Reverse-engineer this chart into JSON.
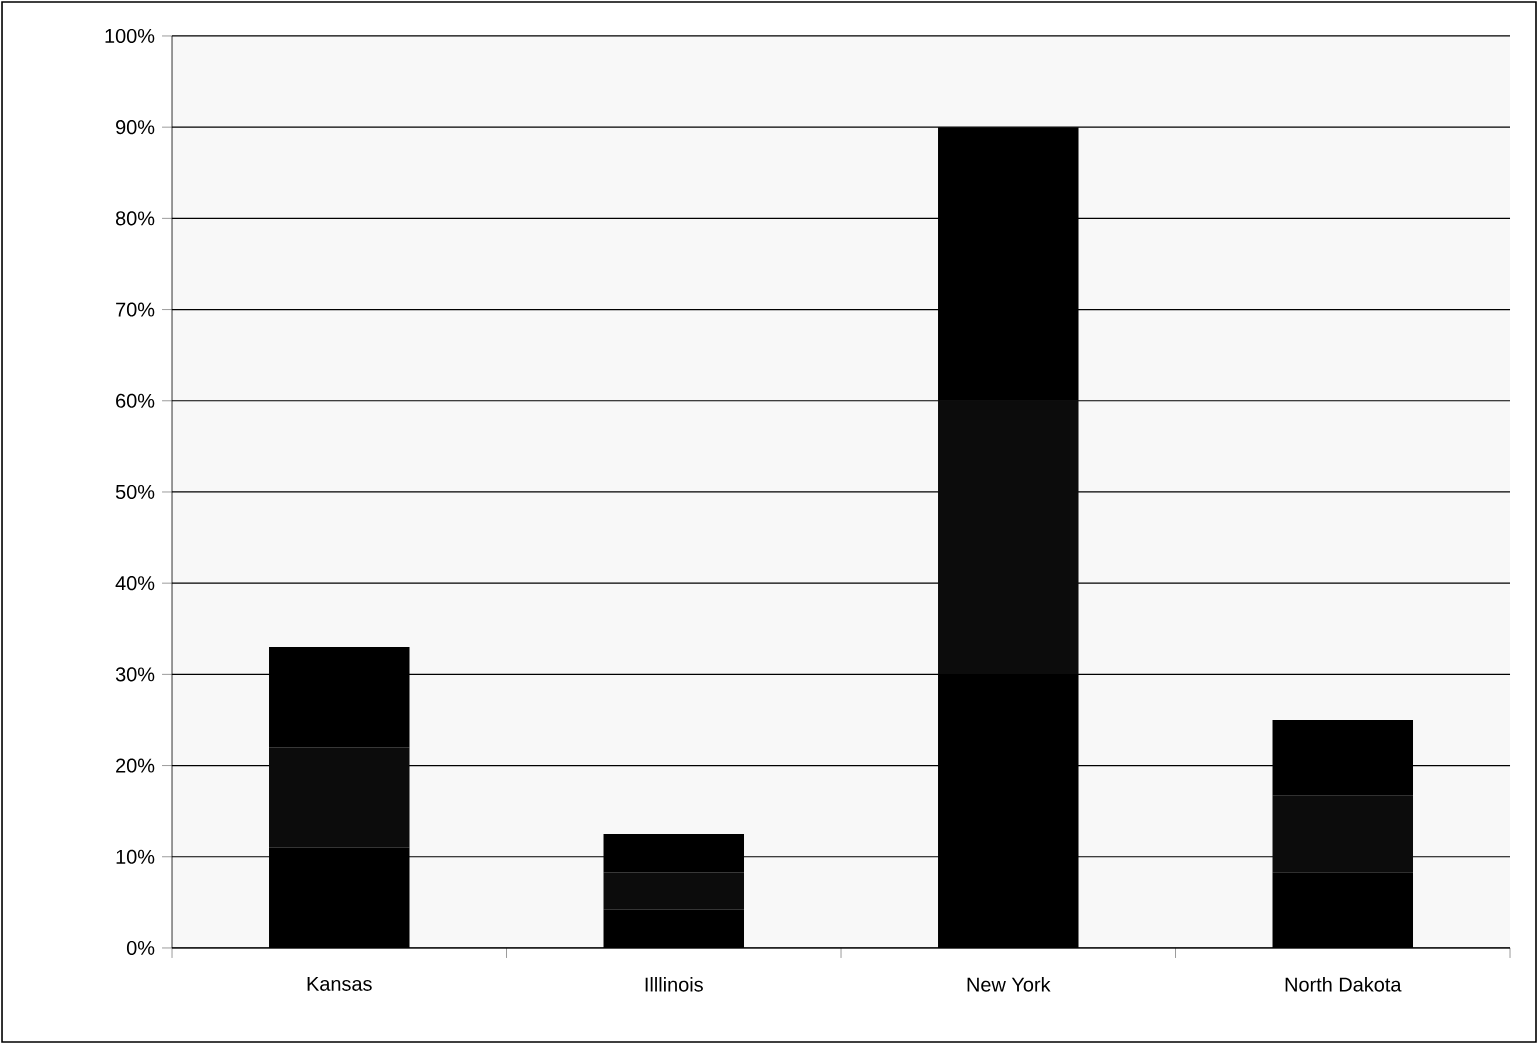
{
  "chart_data": {
    "type": "bar",
    "stacked": true,
    "categories": [
      "Kansas",
      "Illlinois",
      "New York",
      "North Dakota"
    ],
    "series": [
      {
        "color": "#000000",
        "values": [
          11,
          4.2,
          30,
          8.3
        ]
      },
      {
        "color": "#0c0c0c",
        "values": [
          11,
          4.1,
          30,
          8.4
        ]
      },
      {
        "color": "#000000",
        "values": [
          11,
          4.2,
          30,
          8.3
        ]
      }
    ],
    "ylim": [
      0,
      100
    ],
    "yticks": [
      {
        "value": 0,
        "label": "0%"
      },
      {
        "value": 10,
        "label": "10%"
      },
      {
        "value": 20,
        "label": "20%"
      },
      {
        "value": 30,
        "label": "30%"
      },
      {
        "value": 40,
        "label": "40%"
      },
      {
        "value": 50,
        "label": "50%"
      },
      {
        "value": 60,
        "label": "60%"
      },
      {
        "value": 70,
        "label": "70%"
      },
      {
        "value": 80,
        "label": "80%"
      },
      {
        "value": 90,
        "label": "90%"
      },
      {
        "value": 100,
        "label": "100%"
      }
    ],
    "grid": "y",
    "legend": false
  }
}
